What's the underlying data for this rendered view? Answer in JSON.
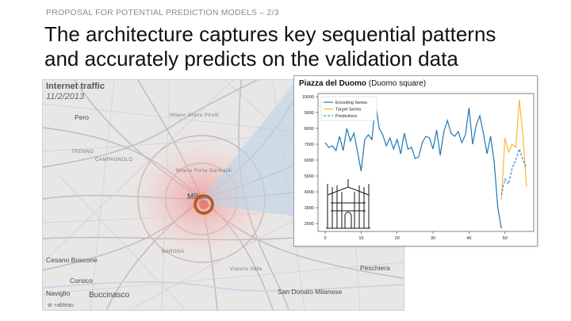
{
  "slide": {
    "kicker": "PROPOSAL FOR POTENTIAL PREDICTION MODELS – 2/3",
    "headline_line1": "The architecture captures key sequential patterns",
    "headline_line2": "and accurately predicts on the validation data"
  },
  "map": {
    "title": "Internet traffic",
    "date": "11/2/2013",
    "highlight_label": "Milan",
    "attribution": "⊛ +ableau",
    "places": [
      {
        "name": "Pero",
        "size": "md"
      },
      {
        "name": "Milano Greco Pirelli",
        "size": "sm"
      },
      {
        "name": "TRENNO",
        "size": "sm"
      },
      {
        "name": "CAMPAGNOLO",
        "size": "sm"
      },
      {
        "name": "Milano Porta Garibaldi",
        "size": "sm"
      },
      {
        "name": "Cesano Boscone",
        "size": "md"
      },
      {
        "name": "Corsico",
        "size": "md"
      },
      {
        "name": "BARONA",
        "size": "sm"
      },
      {
        "name": "Naviglio",
        "size": "md"
      },
      {
        "name": "Buccinasco",
        "size": "lg"
      },
      {
        "name": "San Donato Milanese",
        "size": "md"
      },
      {
        "name": "Peschiera",
        "size": "md"
      },
      {
        "name": "Viaiano Valle",
        "size": "sm"
      }
    ],
    "colors": {
      "background": "#e9e7e6",
      "roads": "#b9b7b5",
      "marker_ring": "#b5581f",
      "heat": "#f2a3a3",
      "beam": "#bcd3e8"
    }
  },
  "panel": {
    "title_bold": "Piazza del Duomo",
    "title_rest": " (Duomo square)",
    "icon": "duomo-cathedral-icon"
  },
  "chart_data": {
    "type": "line",
    "title": "",
    "xlabel": "",
    "ylabel": "",
    "xlim": [
      -2,
      58
    ],
    "ylim": [
      1500,
      10200
    ],
    "xticks": [
      0,
      10,
      20,
      30,
      40,
      50
    ],
    "yticks": [
      2000,
      3000,
      4000,
      5000,
      6000,
      7000,
      8000,
      9000,
      10000
    ],
    "legend_position": "top-left",
    "grid": false,
    "series": [
      {
        "name": "Encoding Series",
        "color": "#1f77b4",
        "style": "solid",
        "x": [
          0,
          1,
          2,
          3,
          4,
          5,
          6,
          7,
          8,
          9,
          10,
          11,
          12,
          13,
          14,
          15,
          16,
          17,
          18,
          19,
          20,
          21,
          22,
          23,
          24,
          25,
          26,
          27,
          28,
          29,
          30,
          31,
          32,
          33,
          34,
          35,
          36,
          37,
          38,
          39,
          40,
          41,
          42,
          43,
          44,
          45,
          46,
          47,
          48,
          49
        ],
        "values": [
          7100,
          6800,
          6900,
          6600,
          7500,
          6600,
          8000,
          7200,
          7700,
          6500,
          5300,
          7300,
          7600,
          7300,
          9600,
          8000,
          7600,
          6900,
          7400,
          6700,
          7300,
          6400,
          7700,
          6700,
          6800,
          6100,
          6200,
          7100,
          7500,
          7400,
          6700,
          7900,
          6300,
          7800,
          8500,
          7700,
          7500,
          7800,
          7100,
          7600,
          9300,
          7000,
          8200,
          8800,
          7700,
          6400,
          7500,
          5900,
          3000,
          1700
        ]
      },
      {
        "name": "Target Series",
        "color": "#ffb532",
        "style": "solid",
        "x": [
          49,
          50,
          51,
          52,
          53,
          54,
          55,
          56
        ],
        "values": [
          3500,
          7400,
          6500,
          7000,
          6800,
          9800,
          7500,
          4300
        ]
      },
      {
        "name": "Predictions",
        "color": "#2b8cbe",
        "style": "dashed",
        "x": [
          49,
          50,
          51,
          52,
          53,
          54,
          55,
          56
        ],
        "values": [
          3800,
          4800,
          4500,
          5500,
          6000,
          6700,
          6000,
          5500
        ]
      }
    ]
  }
}
